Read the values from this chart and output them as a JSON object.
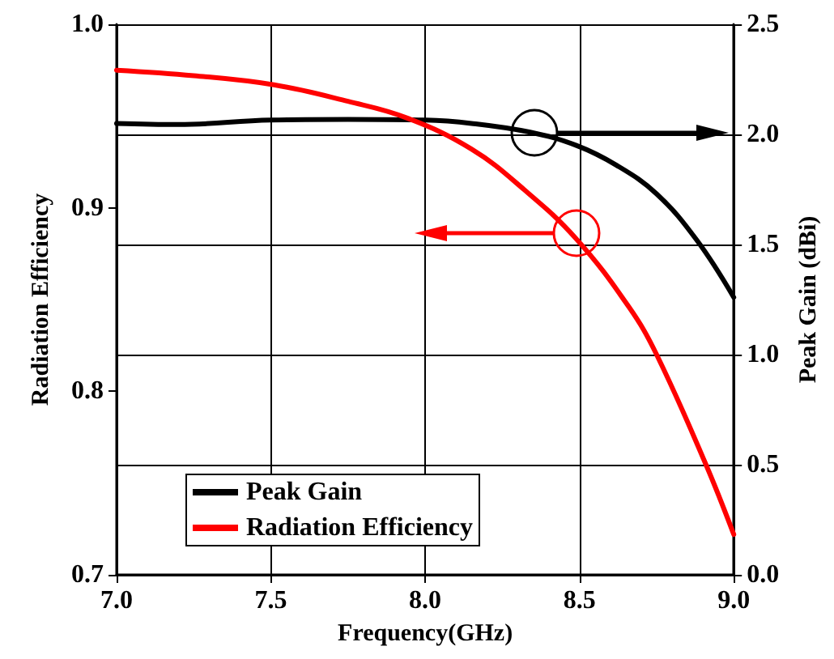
{
  "chart_data": {
    "type": "line",
    "xlabel": "Frequency(GHz)",
    "ylabel": "Radiation Efficiency",
    "y2label": "Peak Gain (dBi)",
    "x": [
      7.0,
      7.2,
      7.5,
      7.75,
      8.0,
      8.15,
      8.34,
      8.49,
      8.62,
      8.75,
      8.88,
      9.0
    ],
    "series": [
      {
        "name": "Peak Gain",
        "color": "#000000",
        "axis": "y2",
        "values": [
          2.05,
          2.045,
          2.065,
          2.068,
          2.065,
          2.05,
          2.01,
          1.95,
          1.86,
          1.73,
          1.52,
          1.26
        ]
      },
      {
        "name": "Radiation Efficiency",
        "color": "#ff0000",
        "x": [
          7.0,
          7.25,
          7.51,
          7.75,
          7.94,
          8.15,
          8.32,
          8.49,
          8.66,
          8.75,
          8.91,
          9.0
        ],
        "values": [
          0.975,
          0.972,
          0.967,
          0.958,
          0.949,
          0.932,
          0.91,
          0.883,
          0.846,
          0.82,
          0.76,
          0.722
        ]
      }
    ],
    "xlim": [
      7.0,
      9.0
    ],
    "xticks": [
      {
        "value": 7.0,
        "label": "7.0"
      },
      7.5,
      {
        "value": 8.0,
        "label": "8.0"
      },
      8.5,
      {
        "value": 9.0,
        "label": "9.0"
      }
    ],
    "ylim": [
      0.7,
      1.0
    ],
    "yticks": [
      0.7,
      0.8,
      0.9,
      {
        "value": 1.0,
        "label": "1.0"
      }
    ],
    "y2lim": [
      0,
      2.5
    ],
    "y2ticks": [
      {
        "value": 0,
        "label": "0.0"
      },
      0.5,
      {
        "value": 1,
        "label": "1.0"
      },
      1.5,
      {
        "value": 2,
        "label": "2.0"
      },
      2.5
    ],
    "grid": true,
    "legend": "bottom left",
    "marker": "none",
    "line_style": "solid"
  }
}
